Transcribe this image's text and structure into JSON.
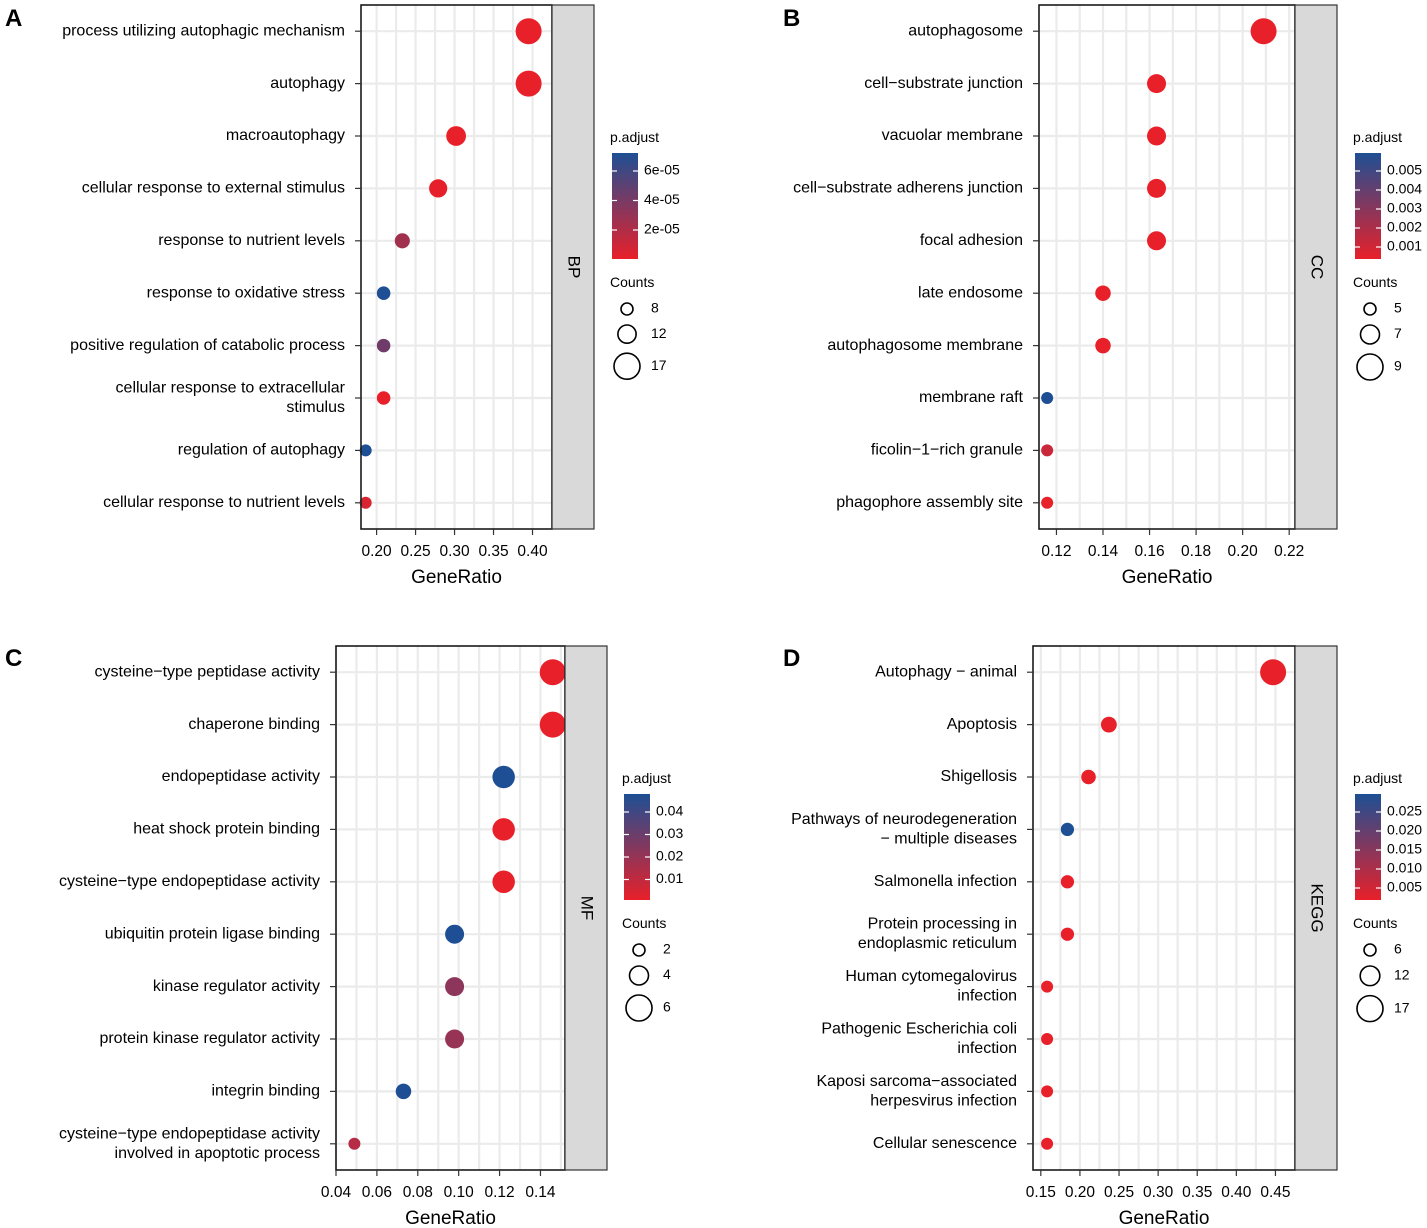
{
  "colors": {
    "low_padj": "#e8202a",
    "high_padj": "#1e4f94"
  },
  "chart_data": [
    {
      "type": "scatter",
      "panel": "A",
      "facet": "BP",
      "xlabel": "GeneRatio",
      "xlim": [
        0.18,
        0.425
      ],
      "xticks": [
        "0.20",
        "0.25",
        "0.30",
        "0.35",
        "0.40"
      ],
      "points": [
        {
          "term": [
            "process utilizing autophagic mechanism"
          ],
          "x": 0.395,
          "count": 17,
          "color_t": 0.0
        },
        {
          "term": [
            "autophagy"
          ],
          "x": 0.395,
          "count": 17,
          "color_t": 0.0
        },
        {
          "term": [
            "macroautophagy"
          ],
          "x": 0.302,
          "count": 13,
          "color_t": 0.0
        },
        {
          "term": [
            "cellular response to external stimulus"
          ],
          "x": 0.279,
          "count": 12,
          "color_t": 0.01
        },
        {
          "term": [
            "response to nutrient levels"
          ],
          "x": 0.233,
          "count": 10,
          "color_t": 0.35
        },
        {
          "term": [
            "response to oxidative stress"
          ],
          "x": 0.209,
          "count": 9,
          "color_t": 1.0
        },
        {
          "term": [
            "positive regulation of catabolic process"
          ],
          "x": 0.209,
          "count": 9,
          "color_t": 0.6
        },
        {
          "term": [
            "cellular response to extracellular",
            "stimulus"
          ],
          "x": 0.209,
          "count": 9,
          "color_t": 0.0
        },
        {
          "term": [
            "regulation of autophagy"
          ],
          "x": 0.186,
          "count": 8,
          "color_t": 1.0
        },
        {
          "term": [
            "cellular response to nutrient levels"
          ],
          "x": 0.186,
          "count": 8,
          "color_t": 0.08
        }
      ],
      "color_legend": {
        "title": "p.adjust",
        "labels": [
          "6e-05",
          "4e-05",
          "2e-05"
        ]
      },
      "size_legend": {
        "title": "Counts",
        "entries": [
          {
            "label": "8",
            "count": 8
          },
          {
            "label": "12",
            "count": 12
          },
          {
            "label": "17",
            "count": 17
          }
        ]
      },
      "size_range": [
        8,
        17
      ]
    },
    {
      "type": "scatter",
      "panel": "B",
      "facet": "CC",
      "xlabel": "GeneRatio",
      "xlim": [
        0.1125,
        0.2225
      ],
      "xticks": [
        "0.12",
        "0.14",
        "0.16",
        "0.18",
        "0.20",
        "0.22"
      ],
      "points": [
        {
          "term": [
            "autophagosome"
          ],
          "x": 0.209,
          "count": 9,
          "color_t": 0.0
        },
        {
          "term": [
            "cell−substrate junction"
          ],
          "x": 0.163,
          "count": 7,
          "color_t": 0.0
        },
        {
          "term": [
            "vacuolar membrane"
          ],
          "x": 0.163,
          "count": 7,
          "color_t": 0.0
        },
        {
          "term": [
            "cell−substrate adherens junction"
          ],
          "x": 0.163,
          "count": 7,
          "color_t": 0.0
        },
        {
          "term": [
            "focal adhesion"
          ],
          "x": 0.163,
          "count": 7,
          "color_t": 0.0
        },
        {
          "term": [
            "late endosome"
          ],
          "x": 0.14,
          "count": 6,
          "color_t": 0.0
        },
        {
          "term": [
            "autophagosome membrane"
          ],
          "x": 0.14,
          "count": 6,
          "color_t": 0.0
        },
        {
          "term": [
            "membrane raft"
          ],
          "x": 0.116,
          "count": 5,
          "color_t": 1.0
        },
        {
          "term": [
            "ficolin−1−rich granule"
          ],
          "x": 0.116,
          "count": 5,
          "color_t": 0.15
        },
        {
          "term": [
            "phagophore assembly site"
          ],
          "x": 0.116,
          "count": 5,
          "color_t": 0.0
        }
      ],
      "color_legend": {
        "title": "p.adjust",
        "labels": [
          "0.005",
          "0.004",
          "0.003",
          "0.002",
          "0.001"
        ]
      },
      "size_legend": {
        "title": "Counts",
        "entries": [
          {
            "label": "5",
            "count": 5
          },
          {
            "label": "7",
            "count": 7
          },
          {
            "label": "9",
            "count": 9
          }
        ]
      },
      "size_range": [
        5,
        9
      ]
    },
    {
      "type": "scatter",
      "panel": "C",
      "facet": "MF",
      "xlabel": "GeneRatio",
      "xlim": [
        0.04,
        0.152
      ],
      "xticks": [
        "0.04",
        "0.06",
        "0.08",
        "0.10",
        "0.12",
        "0.14"
      ],
      "points": [
        {
          "term": [
            "cysteine−type peptidase activity"
          ],
          "x": 0.146,
          "count": 6,
          "color_t": 0.0
        },
        {
          "term": [
            "chaperone binding"
          ],
          "x": 0.146,
          "count": 6,
          "color_t": 0.0
        },
        {
          "term": [
            "endopeptidase activity"
          ],
          "x": 0.122,
          "count": 5,
          "color_t": 1.0
        },
        {
          "term": [
            "heat shock protein binding"
          ],
          "x": 0.122,
          "count": 5,
          "color_t": 0.0
        },
        {
          "term": [
            "cysteine−type endopeptidase activity"
          ],
          "x": 0.122,
          "count": 5,
          "color_t": 0.0
        },
        {
          "term": [
            "ubiquitin protein ligase binding"
          ],
          "x": 0.098,
          "count": 4,
          "color_t": 1.0
        },
        {
          "term": [
            "kinase regulator activity"
          ],
          "x": 0.098,
          "count": 4,
          "color_t": 0.45
        },
        {
          "term": [
            "protein kinase regulator activity"
          ],
          "x": 0.098,
          "count": 4,
          "color_t": 0.4
        },
        {
          "term": [
            "integrin binding"
          ],
          "x": 0.073,
          "count": 3,
          "color_t": 1.0
        },
        {
          "term": [
            "cysteine−type endopeptidase activity",
            "involved in apoptotic process"
          ],
          "x": 0.049,
          "count": 2,
          "color_t": 0.25
        }
      ],
      "color_legend": {
        "title": "p.adjust",
        "labels": [
          "0.04",
          "0.03",
          "0.02",
          "0.01"
        ]
      },
      "size_legend": {
        "title": "Counts",
        "entries": [
          {
            "label": "2",
            "count": 2
          },
          {
            "label": "4",
            "count": 4
          },
          {
            "label": "6",
            "count": 6
          }
        ]
      },
      "size_range": [
        2,
        6
      ]
    },
    {
      "type": "scatter",
      "panel": "D",
      "facet": "KEGG",
      "xlabel": "GeneRatio",
      "xlim": [
        0.14,
        0.475
      ],
      "xticks": [
        "0.15",
        "0.20",
        "0.25",
        "0.30",
        "0.35",
        "0.40",
        "0.45"
      ],
      "points": [
        {
          "term": [
            "Autophagy − animal"
          ],
          "x": 0.447,
          "count": 17,
          "color_t": 0.0
        },
        {
          "term": [
            "Apoptosis"
          ],
          "x": 0.237,
          "count": 9,
          "color_t": 0.0
        },
        {
          "term": [
            "Shigellosis"
          ],
          "x": 0.211,
          "count": 8,
          "color_t": 0.0
        },
        {
          "term": [
            "Pathways of neurodegeneration",
            "− multiple diseases"
          ],
          "x": 0.184,
          "count": 7,
          "color_t": 1.0
        },
        {
          "term": [
            "Salmonella infection"
          ],
          "x": 0.184,
          "count": 7,
          "color_t": 0.0
        },
        {
          "term": [
            "Protein processing in",
            "endoplasmic reticulum"
          ],
          "x": 0.184,
          "count": 7,
          "color_t": 0.0
        },
        {
          "term": [
            "Human cytomegalovirus",
            "infection"
          ],
          "x": 0.158,
          "count": 6,
          "color_t": 0.0
        },
        {
          "term": [
            "Pathogenic Escherichia coli",
            "infection"
          ],
          "x": 0.158,
          "count": 6,
          "color_t": 0.0
        },
        {
          "term": [
            "Kaposi sarcoma−associated",
            "herpesvirus infection"
          ],
          "x": 0.158,
          "count": 6,
          "color_t": 0.0
        },
        {
          "term": [
            "Cellular senescence"
          ],
          "x": 0.158,
          "count": 6,
          "color_t": 0.0
        }
      ],
      "color_legend": {
        "title": "p.adjust",
        "labels": [
          "0.025",
          "0.020",
          "0.015",
          "0.010",
          "0.005"
        ]
      },
      "size_legend": {
        "title": "Counts",
        "entries": [
          {
            "label": "6",
            "count": 6
          },
          {
            "label": "12",
            "count": 12
          },
          {
            "label": "17",
            "count": 17
          }
        ]
      },
      "size_range": [
        6,
        17
      ]
    }
  ]
}
